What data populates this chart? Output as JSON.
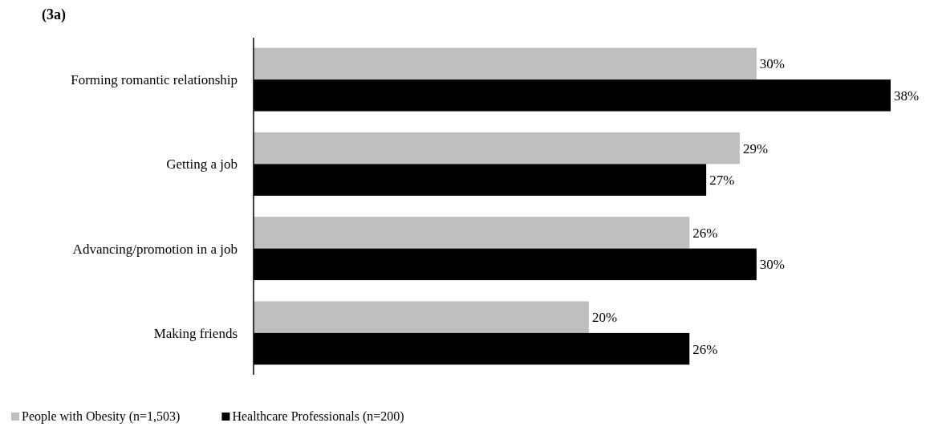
{
  "chart_data": {
    "type": "bar",
    "orientation": "horizontal",
    "title": "(3a)",
    "categories": [
      "Forming romantic relationship",
      "Getting a job",
      "Advancing/promotion in a job",
      "Making friends"
    ],
    "series": [
      {
        "name": "People with Obesity (n=1,503)",
        "color": "#bfbfbf",
        "values": [
          30,
          29,
          26,
          20
        ],
        "value_labels": [
          "30%",
          "29%",
          "26%",
          "20%"
        ]
      },
      {
        "name": "Healthcare Professionals (n=200)",
        "color": "#000000",
        "values": [
          38,
          27,
          30,
          26
        ],
        "value_labels": [
          "38%",
          "27%",
          "30%",
          "26%"
        ]
      }
    ],
    "legend": "bottom left"
  }
}
